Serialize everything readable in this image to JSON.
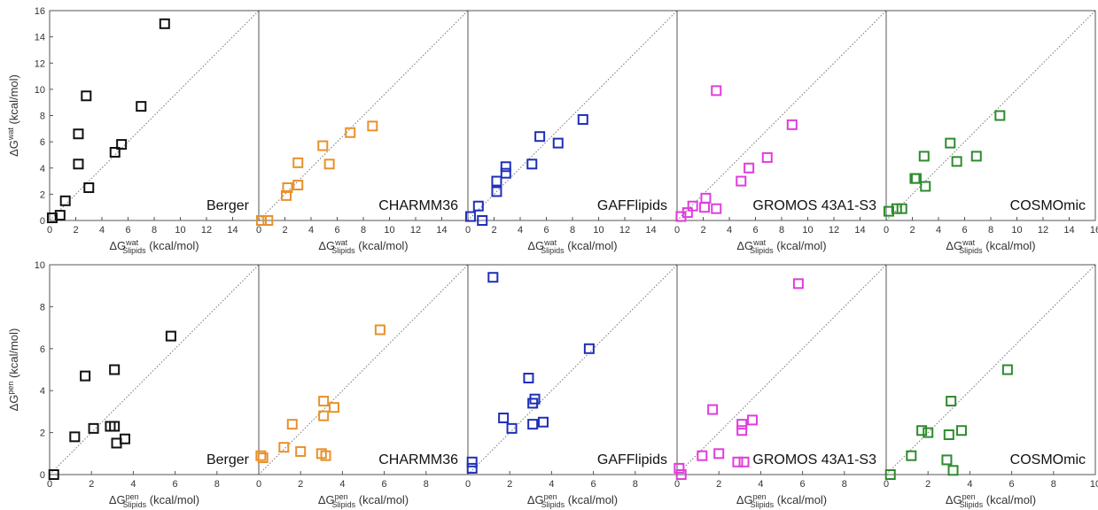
{
  "chart_data": {
    "type": "scatter",
    "top_row": {
      "ylabel": "ΔG",
      "ylabel_sup": "wat",
      "ylabel_unit": "(kcal/mol)",
      "xlabel": "ΔG",
      "xlabel_sup": "wat",
      "xlabel_sub": "Slipids",
      "xlabel_unit": "(kcal/mol)",
      "xlim": [
        0,
        16
      ],
      "ylim": [
        0,
        16
      ],
      "y_ticks": [
        "0",
        "2",
        "4",
        "6",
        "8",
        "10",
        "12",
        "14",
        "16"
      ],
      "x_ticks": [
        "0",
        "2",
        "4",
        "6",
        "8",
        "10",
        "12",
        "14"
      ],
      "x_ticks_last": [
        "0",
        "2",
        "4",
        "6",
        "8",
        "10",
        "12",
        "14",
        "16"
      ]
    },
    "bottom_row": {
      "ylabel": "ΔG",
      "ylabel_sup": "pen",
      "ylabel_unit": "(kcal/mol)",
      "xlabel": "ΔG",
      "xlabel_sup": "pen",
      "xlabel_sub": "Slipids",
      "xlabel_unit": "(kcal/mol)",
      "xlim": [
        0,
        10
      ],
      "ylim": [
        0,
        10
      ],
      "y_ticks": [
        "0",
        "2",
        "4",
        "6",
        "8",
        "10"
      ],
      "x_ticks": [
        "0",
        "2",
        "4",
        "6",
        "8"
      ],
      "x_ticks_last": [
        "0",
        "2",
        "4",
        "6",
        "8",
        "10"
      ]
    },
    "panels": [
      {
        "name": "Berger",
        "color": "#111111",
        "wat": [
          [
            0.2,
            0.2
          ],
          [
            0.8,
            0.4
          ],
          [
            1.2,
            1.5
          ],
          [
            2.2,
            6.6
          ],
          [
            2.2,
            4.3
          ],
          [
            2.8,
            9.5
          ],
          [
            3.0,
            2.5
          ],
          [
            5.0,
            5.2
          ],
          [
            5.5,
            5.8
          ],
          [
            7.0,
            8.7
          ],
          [
            8.8,
            15.0
          ]
        ],
        "pen": [
          [
            0.2,
            0.0
          ],
          [
            1.2,
            1.8
          ],
          [
            1.7,
            4.7
          ],
          [
            2.1,
            2.2
          ],
          [
            2.9,
            2.3
          ],
          [
            3.1,
            2.3
          ],
          [
            3.1,
            5.0
          ],
          [
            3.2,
            1.5
          ],
          [
            3.6,
            1.7
          ],
          [
            5.8,
            6.6
          ]
        ]
      },
      {
        "name": "CHARMM36",
        "color": "#e8912b",
        "wat": [
          [
            0.2,
            0.0
          ],
          [
            0.7,
            0.0
          ],
          [
            2.1,
            1.9
          ],
          [
            2.2,
            2.5
          ],
          [
            3.0,
            2.7
          ],
          [
            3.0,
            4.4
          ],
          [
            4.9,
            5.7
          ],
          [
            5.4,
            4.3
          ],
          [
            7.0,
            6.7
          ],
          [
            8.7,
            7.2
          ]
        ],
        "pen": [
          [
            0.1,
            0.9
          ],
          [
            0.2,
            0.8
          ],
          [
            1.2,
            1.3
          ],
          [
            1.6,
            2.4
          ],
          [
            2.0,
            1.1
          ],
          [
            3.0,
            1.0
          ],
          [
            3.1,
            2.8
          ],
          [
            3.1,
            3.5
          ],
          [
            3.2,
            0.9
          ],
          [
            3.6,
            3.2
          ],
          [
            5.8,
            6.9
          ]
        ]
      },
      {
        "name": "GAFFlipids",
        "color": "#1e2fb8",
        "wat": [
          [
            0.2,
            0.3
          ],
          [
            0.8,
            1.1
          ],
          [
            1.1,
            0.0
          ],
          [
            2.2,
            2.2
          ],
          [
            2.2,
            3.0
          ],
          [
            2.9,
            3.6
          ],
          [
            2.9,
            4.1
          ],
          [
            4.9,
            4.3
          ],
          [
            5.5,
            6.4
          ],
          [
            6.9,
            5.9
          ],
          [
            8.8,
            7.7
          ]
        ],
        "pen": [
          [
            0.2,
            0.6
          ],
          [
            0.2,
            0.3
          ],
          [
            1.2,
            9.4
          ],
          [
            1.7,
            2.7
          ],
          [
            2.1,
            2.2
          ],
          [
            2.9,
            4.6
          ],
          [
            3.1,
            2.4
          ],
          [
            3.1,
            3.4
          ],
          [
            3.2,
            3.6
          ],
          [
            3.6,
            2.5
          ],
          [
            5.8,
            6.0
          ]
        ]
      },
      {
        "name": "GROMOS 43A1-S3",
        "color": "#e03ddc",
        "wat": [
          [
            0.3,
            0.3
          ],
          [
            0.8,
            0.6
          ],
          [
            1.2,
            1.1
          ],
          [
            2.1,
            1.0
          ],
          [
            2.2,
            1.7
          ],
          [
            3.0,
            0.9
          ],
          [
            3.0,
            9.9
          ],
          [
            4.9,
            3.0
          ],
          [
            5.5,
            4.0
          ],
          [
            6.9,
            4.8
          ],
          [
            8.8,
            7.3
          ]
        ],
        "pen": [
          [
            0.1,
            0.3
          ],
          [
            0.2,
            0.0
          ],
          [
            1.2,
            0.9
          ],
          [
            1.7,
            3.1
          ],
          [
            2.0,
            1.0
          ],
          [
            2.9,
            0.6
          ],
          [
            3.1,
            2.4
          ],
          [
            3.1,
            2.1
          ],
          [
            3.2,
            0.6
          ],
          [
            3.6,
            2.6
          ],
          [
            5.8,
            9.1
          ]
        ]
      },
      {
        "name": "COSMOmic",
        "color": "#2e8b2e",
        "wat": [
          [
            0.2,
            0.7
          ],
          [
            0.8,
            0.9
          ],
          [
            1.2,
            0.9
          ],
          [
            2.2,
            3.2
          ],
          [
            2.3,
            3.2
          ],
          [
            2.9,
            4.9
          ],
          [
            3.0,
            2.6
          ],
          [
            4.9,
            5.9
          ],
          [
            5.4,
            4.5
          ],
          [
            6.9,
            4.9
          ],
          [
            8.7,
            8.0
          ]
        ],
        "pen": [
          [
            0.2,
            0.0
          ],
          [
            1.2,
            0.9
          ],
          [
            1.7,
            2.1
          ],
          [
            2.0,
            2.0
          ],
          [
            2.9,
            0.7
          ],
          [
            3.0,
            1.9
          ],
          [
            3.1,
            3.5
          ],
          [
            3.2,
            0.2
          ],
          [
            3.6,
            2.1
          ],
          [
            5.8,
            5.0
          ]
        ]
      }
    ]
  }
}
